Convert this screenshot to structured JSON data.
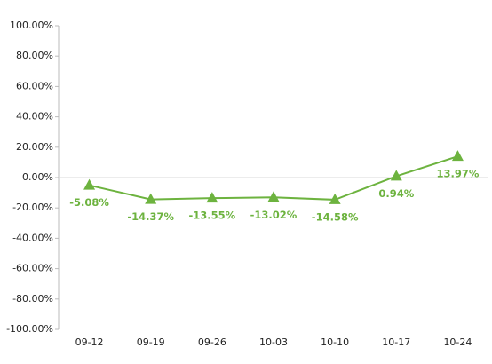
{
  "chart_data": {
    "type": "line",
    "categories": [
      "09-12",
      "09-19",
      "09-26",
      "10-03",
      "10-10",
      "10-17",
      "10-24"
    ],
    "series": [
      {
        "color": "#6db33f",
        "values": [
          -5.08,
          -14.37,
          -13.55,
          -13.02,
          -14.58,
          0.94,
          13.97
        ],
        "value_labels": [
          "-5.08%",
          "-14.37%",
          "-13.55%",
          "-13.02%",
          "-14.58%",
          "0.94%",
          "13.97%"
        ]
      }
    ],
    "ylim": [
      -100,
      100
    ],
    "yticks": [
      {
        "value": -100,
        "label": "-100.00%"
      },
      {
        "value": -80,
        "label": "-80.00%"
      },
      {
        "value": -60,
        "label": "-60.00%"
      },
      {
        "value": -40,
        "label": "-40.00%"
      },
      {
        "value": -20,
        "label": "-20.00%"
      },
      {
        "value": 0,
        "label": "0.00%"
      },
      {
        "value": 20,
        "label": "20.00%"
      },
      {
        "value": 40,
        "label": "40.00%"
      },
      {
        "value": 60,
        "label": "60.00%"
      },
      {
        "value": 80,
        "label": "80.00%"
      },
      {
        "value": 100,
        "label": "100.00%"
      }
    ]
  }
}
